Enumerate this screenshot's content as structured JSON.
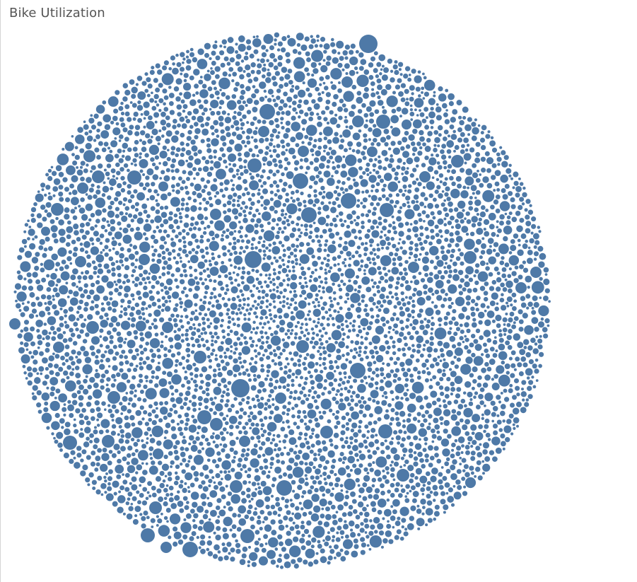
{
  "worksheet": {
    "title": "Bike Utilization"
  },
  "colors": {
    "bubble_fill": "#4e79a7",
    "background": "#ffffff",
    "title_text": "#555555"
  },
  "chart_data": {
    "type": "packed-bubble",
    "title": "Bike Utilization",
    "color": "#4e79a7",
    "legend": "none",
    "grid": false,
    "mark_count_approx": 6000,
    "size_distribution": {
      "note_values_relative": "bubble size encodes utilization; individual bike ids and values are not printed",
      "largest_relative_size": 1.0,
      "typical_relative_size": 0.2,
      "smallest_relative_size": 0.08
    }
  }
}
